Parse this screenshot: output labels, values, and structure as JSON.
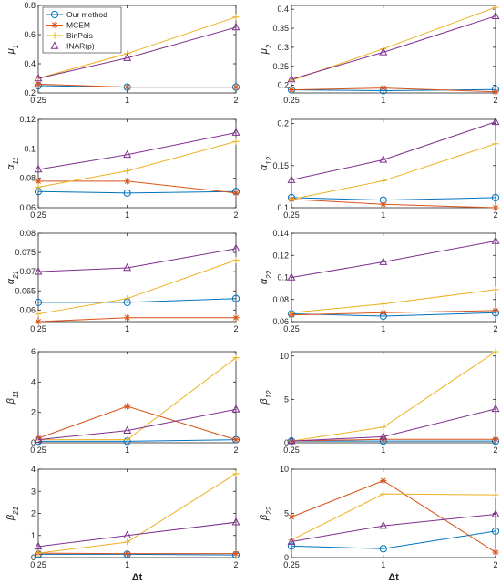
{
  "legend": [
    "Our method",
    "MCEM",
    "BinPois",
    "INAR(p)"
  ],
  "colors": {
    "Our method": "#0072BD",
    "MCEM": "#D95319",
    "BinPois": "#EDB120",
    "INAR(p)": "#7E2F8E"
  },
  "markers": {
    "Our method": "circle",
    "MCEM": "asterisk",
    "BinPois": "plus",
    "INAR(p)": "triangle"
  },
  "chart_data": [
    {
      "type": "line",
      "ylabel": "μ",
      "ysub": "1",
      "xlabel": "",
      "categories": [
        "0.25",
        "1",
        "2"
      ],
      "ylim": [
        0.2,
        0.8
      ],
      "yticks": [
        "0.2",
        "0.4",
        "0.6",
        "0.8"
      ],
      "series": [
        {
          "name": "Our method",
          "values": [
            0.25,
            0.24,
            0.24
          ]
        },
        {
          "name": "MCEM",
          "values": [
            0.26,
            0.24,
            0.24
          ]
        },
        {
          "name": "BinPois",
          "values": [
            0.3,
            0.47,
            0.72
          ]
        },
        {
          "name": "INAR(p)",
          "values": [
            0.3,
            0.44,
            0.65
          ]
        }
      ]
    },
    {
      "type": "line",
      "ylabel": "μ",
      "ysub": "2",
      "xlabel": "",
      "categories": [
        "0.25",
        "1",
        "2"
      ],
      "ylim": [
        0.18,
        0.41
      ],
      "yticks": [
        "0.2",
        "0.25",
        "0.3",
        "0.35",
        "0.4"
      ],
      "series": [
        {
          "name": "Our method",
          "values": [
            0.188,
            0.186,
            0.189
          ]
        },
        {
          "name": "MCEM",
          "values": [
            0.188,
            0.193,
            0.183
          ]
        },
        {
          "name": "BinPois",
          "values": [
            0.213,
            0.296,
            0.405
          ]
        },
        {
          "name": "INAR(p)",
          "values": [
            0.216,
            0.287,
            0.382
          ]
        }
      ]
    },
    {
      "type": "line",
      "ylabel": "α",
      "ysub": "11",
      "xlabel": "",
      "categories": [
        "0.25",
        "1",
        "2"
      ],
      "ylim": [
        0.06,
        0.12
      ],
      "yticks": [
        "0.06",
        "0.08",
        "0.1",
        "0.12"
      ],
      "series": [
        {
          "name": "Our method",
          "values": [
            0.071,
            0.07,
            0.071
          ]
        },
        {
          "name": "MCEM",
          "values": [
            0.078,
            0.078,
            0.07
          ]
        },
        {
          "name": "BinPois",
          "values": [
            0.074,
            0.085,
            0.105
          ]
        },
        {
          "name": "INAR(p)",
          "values": [
            0.086,
            0.096,
            0.111
          ]
        }
      ]
    },
    {
      "type": "line",
      "ylabel": "α",
      "ysub": "12",
      "xlabel": "",
      "categories": [
        "0.25",
        "1",
        "2"
      ],
      "ylim": [
        0.1,
        0.205
      ],
      "yticks": [
        "0.1",
        "0.15",
        "0.2"
      ],
      "series": [
        {
          "name": "Our method",
          "values": [
            0.112,
            0.109,
            0.112
          ]
        },
        {
          "name": "MCEM",
          "values": [
            0.11,
            0.104,
            0.1
          ]
        },
        {
          "name": "BinPois",
          "values": [
            0.11,
            0.132,
            0.176
          ]
        },
        {
          "name": "INAR(p)",
          "values": [
            0.133,
            0.157,
            0.202
          ]
        }
      ]
    },
    {
      "type": "line",
      "ylabel": "α",
      "ysub": "21",
      "xlabel": "",
      "categories": [
        "0.25",
        "1",
        "2"
      ],
      "ylim": [
        0.057,
        0.08
      ],
      "yticks": [
        "0.06",
        "0.065",
        "0.07",
        "0.075",
        "0.08"
      ],
      "series": [
        {
          "name": "Our method",
          "values": [
            0.062,
            0.062,
            0.063
          ]
        },
        {
          "name": "MCEM",
          "values": [
            0.057,
            0.058,
            0.058
          ]
        },
        {
          "name": "BinPois",
          "values": [
            0.059,
            0.063,
            0.073
          ]
        },
        {
          "name": "INAR(p)",
          "values": [
            0.07,
            0.071,
            0.076
          ]
        }
      ]
    },
    {
      "type": "line",
      "ylabel": "α",
      "ysub": "22",
      "xlabel": "",
      "categories": [
        "0.25",
        "1",
        "2"
      ],
      "ylim": [
        0.06,
        0.14
      ],
      "yticks": [
        "0.06",
        "0.08",
        "0.1",
        "0.12",
        "0.14"
      ],
      "series": [
        {
          "name": "Our method",
          "values": [
            0.067,
            0.065,
            0.068
          ]
        },
        {
          "name": "MCEM",
          "values": [
            0.066,
            0.068,
            0.07
          ]
        },
        {
          "name": "BinPois",
          "values": [
            0.068,
            0.076,
            0.089
          ]
        },
        {
          "name": "INAR(p)",
          "values": [
            0.1,
            0.114,
            0.133
          ]
        }
      ]
    },
    {
      "type": "line",
      "ylabel": "β",
      "ysub": "11",
      "xlabel": "",
      "categories": [
        "0.25",
        "1",
        "2"
      ],
      "ylim": [
        0,
        6
      ],
      "yticks": [
        "0",
        "2",
        "4",
        "6"
      ],
      "series": [
        {
          "name": "Our method",
          "values": [
            0.1,
            0.1,
            0.2
          ]
        },
        {
          "name": "MCEM",
          "values": [
            0.3,
            2.4,
            0.2
          ]
        },
        {
          "name": "BinPois",
          "values": [
            0.2,
            0.2,
            5.6
          ]
        },
        {
          "name": "INAR(p)",
          "values": [
            0.2,
            0.8,
            2.2
          ]
        }
      ]
    },
    {
      "type": "line",
      "ylabel": "β",
      "ysub": "12",
      "xlabel": "",
      "categories": [
        "0.25",
        "1",
        "2"
      ],
      "ylim": [
        0,
        10.5
      ],
      "yticks": [
        "0",
        "5",
        "10"
      ],
      "series": [
        {
          "name": "Our method",
          "values": [
            0.2,
            0.2,
            0.2
          ]
        },
        {
          "name": "MCEM",
          "values": [
            0.2,
            0.4,
            0.4
          ]
        },
        {
          "name": "BinPois",
          "values": [
            0.2,
            1.8,
            10.5
          ]
        },
        {
          "name": "INAR(p)",
          "values": [
            0.2,
            0.7,
            3.9
          ]
        }
      ]
    },
    {
      "type": "line",
      "ylabel": "β",
      "ysub": "21",
      "xlabel": "Δt",
      "categories": [
        "0.25",
        "1",
        "2"
      ],
      "ylim": [
        0,
        4
      ],
      "yticks": [
        "0",
        "1",
        "2",
        "3",
        "4"
      ],
      "series": [
        {
          "name": "Our method",
          "values": [
            0.15,
            0.15,
            0.12
          ]
        },
        {
          "name": "MCEM",
          "values": [
            0.2,
            0.18,
            0.18
          ]
        },
        {
          "name": "BinPois",
          "values": [
            0.2,
            0.7,
            3.8
          ]
        },
        {
          "name": "INAR(p)",
          "values": [
            0.5,
            1.0,
            1.6
          ]
        }
      ]
    },
    {
      "type": "line",
      "ylabel": "β",
      "ysub": "22",
      "xlabel": "Δt",
      "categories": [
        "0.25",
        "1",
        "2"
      ],
      "ylim": [
        0,
        10
      ],
      "yticks": [
        "0",
        "5",
        "10"
      ],
      "series": [
        {
          "name": "Our method",
          "values": [
            1.3,
            1.0,
            3.0
          ]
        },
        {
          "name": "MCEM",
          "values": [
            4.6,
            8.7,
            0.6
          ]
        },
        {
          "name": "BinPois",
          "values": [
            2.0,
            7.2,
            7.1
          ]
        },
        {
          "name": "INAR(p)",
          "values": [
            1.8,
            3.6,
            4.9
          ]
        }
      ]
    }
  ]
}
